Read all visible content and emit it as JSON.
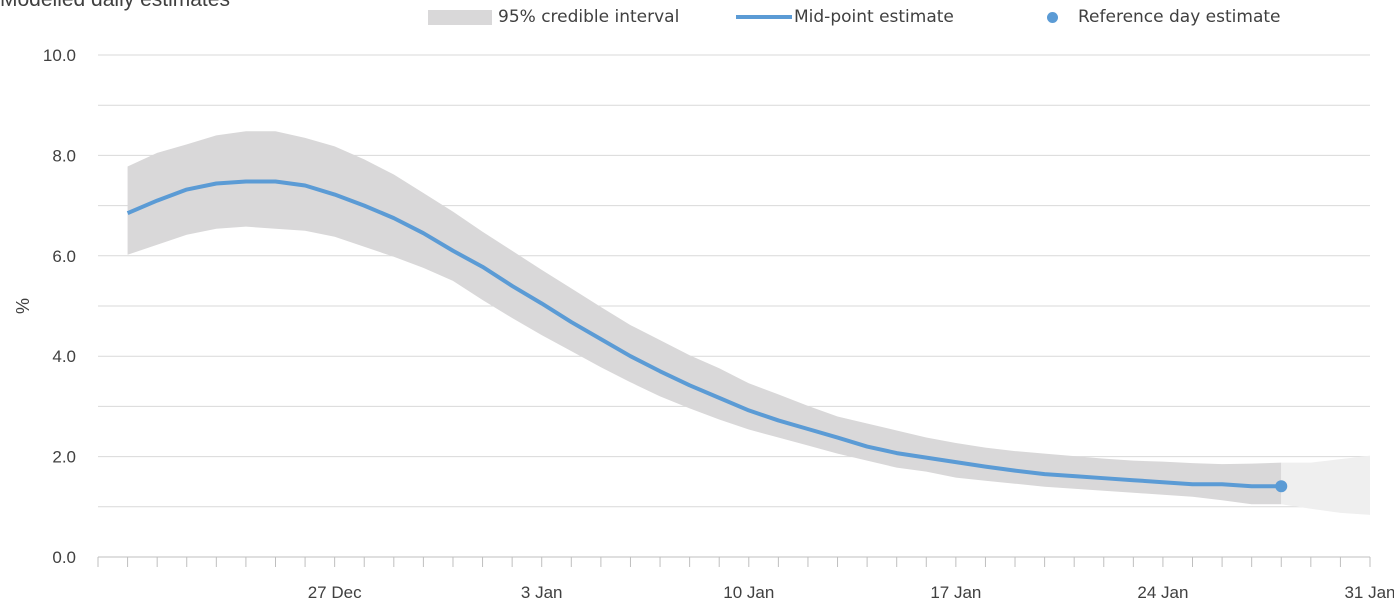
{
  "chart_data": {
    "type": "line",
    "title": "Modelled daily estimates",
    "ylabel": "%",
    "ylim": [
      0,
      10
    ],
    "yticks": [
      "0.0",
      "2.0",
      "4.0",
      "6.0",
      "8.0",
      "10.0"
    ],
    "xlim": [
      "2020-12-19",
      "2021-01-31"
    ],
    "xticks": [
      {
        "date": "2020-12-27",
        "label": "27 Dec"
      },
      {
        "date": "2021-01-03",
        "label": "3 Jan"
      },
      {
        "date": "2021-01-10",
        "label": "10 Jan"
      },
      {
        "date": "2021-01-17",
        "label": "17 Jan"
      },
      {
        "date": "2021-01-24",
        "label": "24 Jan"
      },
      {
        "date": "2021-01-31",
        "label": "31 Jan"
      }
    ],
    "grid": true,
    "legend_position": "top",
    "legend": [
      "95% credible interval",
      "Mid-point estimate",
      "Reference day estimate"
    ],
    "colors": {
      "band": "#d9d8d9",
      "band_future": "#efefef",
      "line": "#5b9bd5",
      "grid": "#d9d9d9",
      "axis": "#bfbfbf"
    },
    "x": [
      "2020-12-20",
      "2020-12-21",
      "2020-12-22",
      "2020-12-23",
      "2020-12-24",
      "2020-12-25",
      "2020-12-26",
      "2020-12-27",
      "2020-12-28",
      "2020-12-29",
      "2020-12-30",
      "2020-12-31",
      "2021-01-01",
      "2021-01-02",
      "2021-01-03",
      "2021-01-04",
      "2021-01-05",
      "2021-01-06",
      "2021-01-07",
      "2021-01-08",
      "2021-01-09",
      "2021-01-10",
      "2021-01-11",
      "2021-01-12",
      "2021-01-13",
      "2021-01-14",
      "2021-01-15",
      "2021-01-16",
      "2021-01-17",
      "2021-01-18",
      "2021-01-19",
      "2021-01-20",
      "2021-01-21",
      "2021-01-22",
      "2021-01-23",
      "2021-01-24",
      "2021-01-25",
      "2021-01-26",
      "2021-01-27",
      "2021-01-28"
    ],
    "series": [
      {
        "name": "Mid-point estimate",
        "values": [
          6.85,
          7.1,
          7.32,
          7.44,
          7.48,
          7.48,
          7.4,
          7.22,
          7.0,
          6.75,
          6.45,
          6.1,
          5.78,
          5.4,
          5.05,
          4.68,
          4.34,
          4.0,
          3.7,
          3.42,
          3.17,
          2.92,
          2.72,
          2.55,
          2.38,
          2.2,
          2.07,
          1.98,
          1.89,
          1.8,
          1.72,
          1.65,
          1.61,
          1.57,
          1.53,
          1.49,
          1.45,
          1.45,
          1.41,
          1.41
        ]
      },
      {
        "name": "95% credible interval",
        "lower": [
          6.02,
          6.22,
          6.42,
          6.54,
          6.58,
          6.54,
          6.5,
          6.38,
          6.18,
          5.98,
          5.76,
          5.5,
          5.12,
          4.76,
          4.42,
          4.1,
          3.78,
          3.48,
          3.2,
          2.96,
          2.74,
          2.54,
          2.38,
          2.22,
          2.06,
          1.92,
          1.78,
          1.7,
          1.58,
          1.52,
          1.46,
          1.4,
          1.36,
          1.32,
          1.28,
          1.24,
          1.2,
          1.13,
          1.05,
          1.05
        ],
        "upper": [
          7.78,
          8.05,
          8.22,
          8.4,
          8.48,
          8.48,
          8.35,
          8.18,
          7.92,
          7.62,
          7.25,
          6.88,
          6.48,
          6.1,
          5.72,
          5.35,
          4.98,
          4.62,
          4.32,
          4.02,
          3.76,
          3.46,
          3.24,
          3.01,
          2.8,
          2.66,
          2.52,
          2.38,
          2.27,
          2.18,
          2.11,
          2.06,
          2.01,
          1.96,
          1.92,
          1.9,
          1.87,
          1.85,
          1.86,
          1.88
        ]
      }
    ],
    "future_band": {
      "x": [
        "2021-01-28",
        "2021-01-29",
        "2021-01-30",
        "2021-01-31"
      ],
      "lower": [
        1.05,
        0.96,
        0.88,
        0.84
      ],
      "upper": [
        1.88,
        1.88,
        1.95,
        2.02
      ]
    },
    "reference_point": {
      "x": "2021-01-28",
      "y": 1.41
    }
  }
}
